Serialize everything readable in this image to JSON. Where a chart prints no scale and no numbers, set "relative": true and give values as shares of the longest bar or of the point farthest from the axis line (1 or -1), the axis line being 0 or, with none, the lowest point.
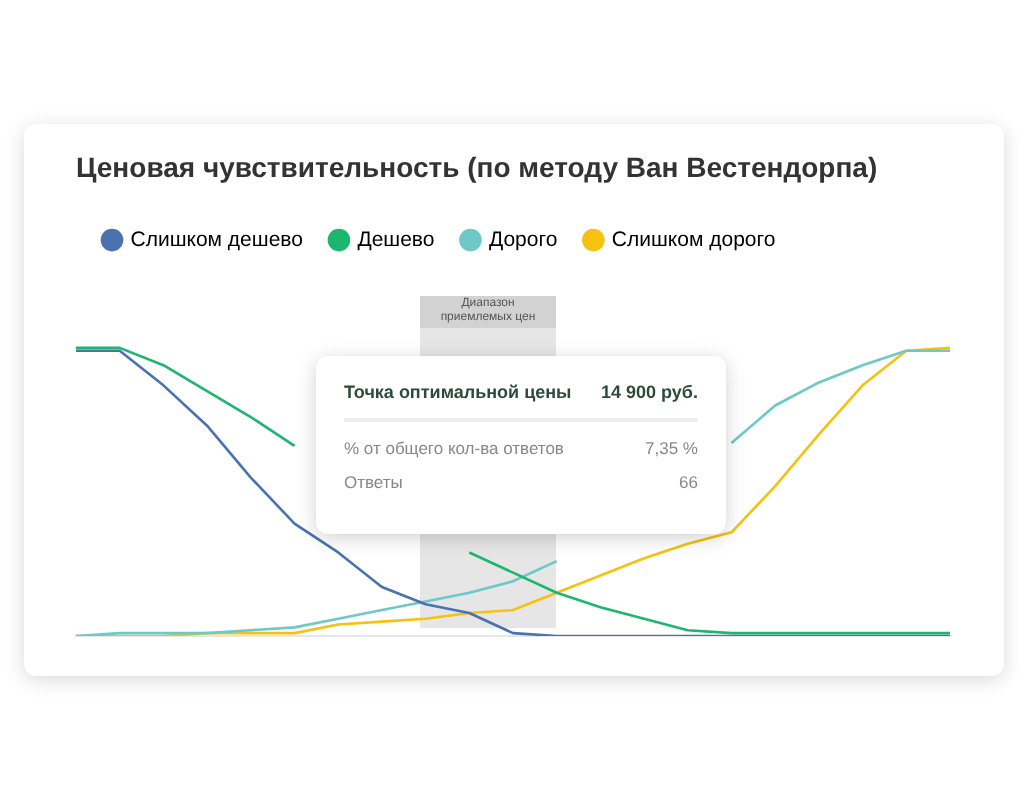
{
  "chart_data": {
    "type": "line",
    "title": "Ценовая чувствительность (по методу Ван Вестендорпа)",
    "relative": true,
    "legend": "top left",
    "marker": "none",
    "categories": [
      null,
      null,
      null,
      null,
      null,
      null,
      null,
      null,
      null,
      null,
      null,
      null,
      null,
      null,
      null,
      null,
      null,
      null,
      null,
      null,
      null
    ],
    "series": [
      {
        "name": "Слишком дешево",
        "color": "#4a72b0",
        "values": [
          0.99,
          0.99,
          0.87,
          0.73,
          0.55,
          0.39,
          0.29,
          0.17,
          0.11,
          0.08,
          0.01,
          0,
          0,
          0,
          0,
          0,
          0,
          0,
          0,
          0,
          0
        ]
      },
      {
        "name": "Дешево",
        "color": "#1db66f",
        "values": [
          1,
          1,
          0.94,
          0.85,
          0.76,
          0.66,
          null,
          null,
          null,
          0.29,
          0.22,
          0.15,
          0.1,
          0.06,
          0.02,
          0.01,
          0.01,
          0.01,
          0.01,
          0.01,
          0.01
        ]
      },
      {
        "name": "Дорого",
        "color": "#6cc9c8",
        "values": [
          0,
          0.01,
          0.01,
          0.01,
          0.02,
          0.03,
          0.06,
          0.09,
          0.12,
          0.15,
          0.19,
          0.26,
          null,
          null,
          null,
          0.67,
          0.8,
          0.88,
          0.94,
          0.99,
          0.99
        ]
      },
      {
        "name": "Слишком дорого",
        "color": "#f5c211",
        "values": [
          0,
          0,
          0,
          0.01,
          0.01,
          0.01,
          0.04,
          0.05,
          0.06,
          0.08,
          0.09,
          0.15,
          0.21,
          0.27,
          0.32,
          0.36,
          0.52,
          0.7,
          0.87,
          0.99,
          1
        ]
      }
    ],
    "annotations": [
      "Диапазон приемлемых цен",
      "Точка оптимальной цены",
      "14 900 руб.",
      "% от общего кол-ва ответов",
      "7,35 %",
      "Ответы",
      "66"
    ]
  }
}
